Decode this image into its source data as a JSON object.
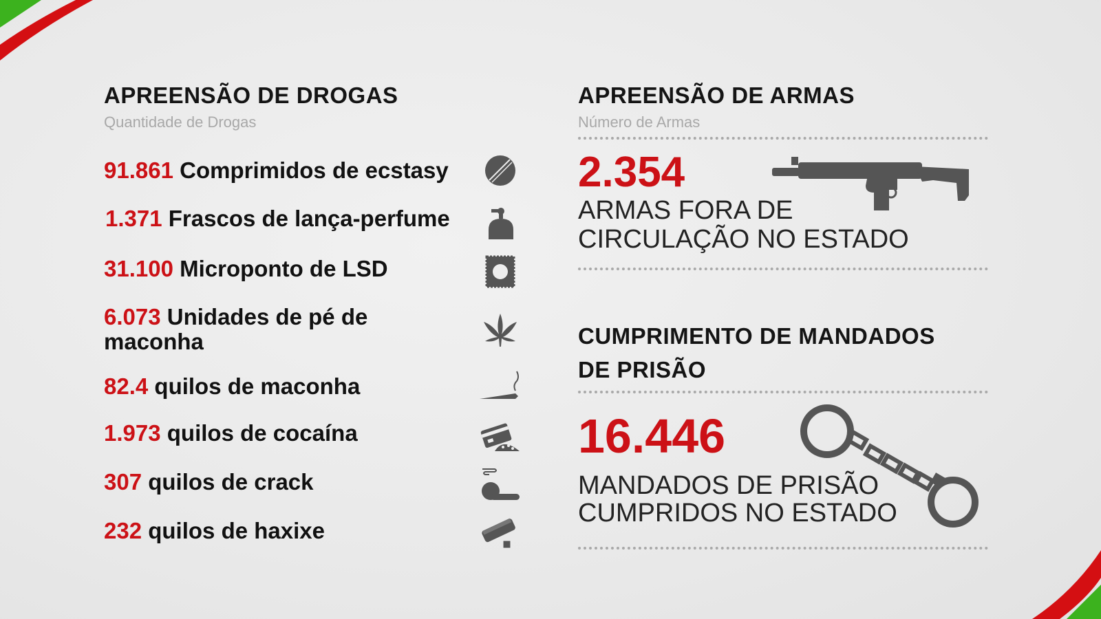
{
  "drugs": {
    "title": "APREENSÃO DE DROGAS",
    "subtitle": "Quantidade de Drogas",
    "items": [
      {
        "value": "91.861",
        "label": "Comprimidos de ecstasy",
        "icon": "pill-icon"
      },
      {
        "value": "1.371",
        "label": "Frascos de lança-perfume",
        "icon": "spray-bottle-icon"
      },
      {
        "value": "31.100",
        "label": "Microponto de LSD",
        "icon": "stamp-icon"
      },
      {
        "value": "6.073",
        "label": "Unidades de pé de maconha",
        "icon": "cannabis-leaf-icon"
      },
      {
        "value": "82.4",
        "label": "quilos de maconha",
        "icon": "joint-icon"
      },
      {
        "value": "1.973",
        "label": "quilos de cocaína",
        "icon": "card-powder-icon"
      },
      {
        "value": "307",
        "label": "quilos de crack",
        "icon": "crack-pipe-icon"
      },
      {
        "value": "232",
        "label": "quilos de haxixe",
        "icon": "hash-block-icon"
      }
    ]
  },
  "weapons": {
    "title": "APREENSÃO DE ARMAS",
    "subtitle": "Número de Armas",
    "value": "2.354",
    "line1": "ARMAS FORA DE",
    "line2": "CIRCULAÇÃO NO ESTADO",
    "icon": "submachine-gun-icon"
  },
  "warrants": {
    "title_line1": "CUMPRIMENTO DE MANDADOS",
    "title_line2": "DE PRISÃO",
    "value": "16.446",
    "line1": "MANDADOS DE PRISÃO",
    "line2": "CUMPRIDOS NO ESTADO",
    "icon": "handcuffs-icon"
  },
  "colors": {
    "accent_red": "#cc1116",
    "accent_green": "#3cb21e",
    "icon_gray": "#555555"
  }
}
